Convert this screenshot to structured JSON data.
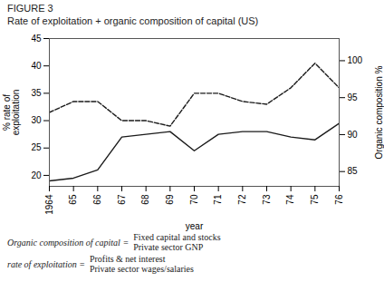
{
  "chart_data": {
    "type": "line",
    "title": "FIGURE 3",
    "subtitle": "Rate of exploitation + organic composition of capital (US)",
    "x": [
      1964,
      1965,
      1966,
      1967,
      1968,
      1969,
      1970,
      1971,
      1972,
      1973,
      1974,
      1975,
      1976
    ],
    "xlim": [
      1964,
      1976
    ],
    "xticks": [
      1964,
      {
        "value": 1965,
        "label": "65"
      },
      {
        "value": 1966,
        "label": "66"
      },
      {
        "value": 1967,
        "label": "67"
      },
      {
        "value": 1968,
        "label": "68"
      },
      {
        "value": 1969,
        "label": "69"
      },
      {
        "value": 1970,
        "label": "70"
      },
      {
        "value": 1971,
        "label": "71"
      },
      {
        "value": 1972,
        "label": "72"
      },
      {
        "value": 1973,
        "label": "73"
      },
      {
        "value": 1974,
        "label": "74"
      },
      {
        "value": 1975,
        "label": "75"
      },
      {
        "value": 1976,
        "label": "76"
      }
    ],
    "xlabel": "year",
    "ylabel": "% rate of\nexploitation",
    "ylim": [
      18,
      45
    ],
    "yticks": [
      20,
      25,
      30,
      35,
      40,
      45
    ],
    "y2label": "Organic composition %",
    "y2lim": [
      83,
      103
    ],
    "y2ticks": [
      85,
      90,
      95,
      100
    ],
    "series": [
      {
        "color": "#1a1a1a",
        "line_style": "solid",
        "values": [
          19.0,
          19.5,
          21.0,
          27.0,
          27.5,
          28.0,
          24.5,
          27.5,
          28.0,
          28.0,
          27.0,
          26.5,
          29.5
        ]
      },
      {
        "color": "#1a1a1a",
        "line_style": "dashed",
        "values": [
          31.5,
          33.5,
          33.5,
          30.0,
          30.0,
          29.0,
          35.0,
          35.0,
          33.5,
          33.0,
          36.0,
          40.5,
          36.0
        ]
      }
    ],
    "annotations": [
      [
        "Organic composition of capital =",
        "Fixed capital and stocks",
        "Private sector GNP"
      ],
      [
        "rate of exploitation =",
        "Profits & net interest",
        "Private sector wages/salaries"
      ]
    ],
    "grid": false
  }
}
